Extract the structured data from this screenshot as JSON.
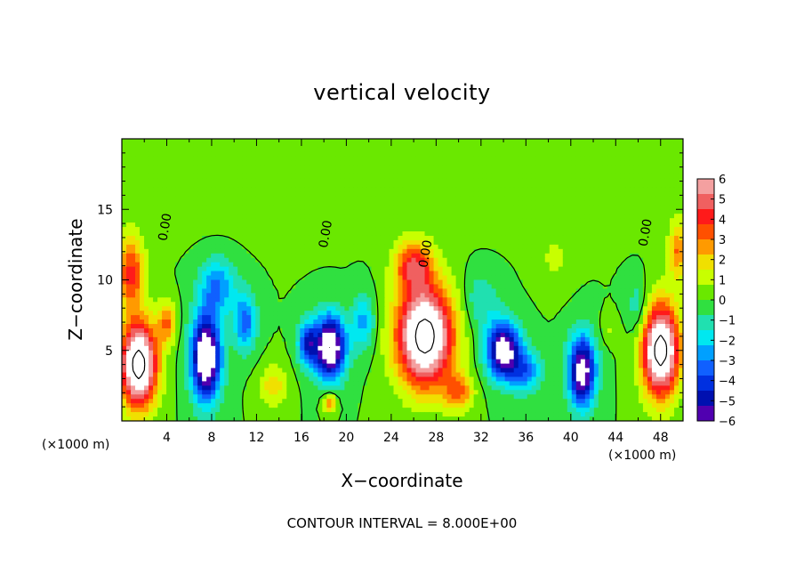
{
  "chart_data": {
    "type": "heatmap",
    "title": "vertical velocity",
    "xlabel": "X−coordinate",
    "ylabel": "Z−coordinate",
    "x_unit_left": "(×1000 m)",
    "x_unit_right": "(×1000 m)",
    "xlim": [
      0,
      50
    ],
    "ylim": [
      0,
      20
    ],
    "x_ticks": [
      4,
      8,
      12,
      16,
      20,
      24,
      28,
      32,
      36,
      40,
      44,
      48
    ],
    "y_ticks": [
      5,
      10,
      15
    ],
    "contour_interval_text": "CONTOUR INTERVAL = 8.000E+00",
    "contour_label": "0.00",
    "colorbar": {
      "levels": [
        6,
        5,
        4,
        3,
        2,
        1,
        0,
        -1,
        -2,
        -3,
        -4,
        -5,
        -6
      ],
      "labels": [
        "6",
        "5",
        "4",
        "3",
        "2",
        "1",
        "0",
        "−1",
        "−2",
        "−3",
        "−4",
        "−5",
        "−6"
      ],
      "colors": [
        "#f4a0a0",
        "#f06060",
        "#ff1a1a",
        "#ff5000",
        "#ff9a00",
        "#f0e000",
        "#c8ff00",
        "#6ae800",
        "#30e040",
        "#20e0b0",
        "#00e8f0",
        "#00a0ff",
        "#1060ff",
        "#0030e0",
        "#0010b0",
        "#5000b0"
      ]
    },
    "features": [
      {
        "x": 1.5,
        "z": 4.0,
        "sx": 1.6,
        "sz": 3.0,
        "w": 9
      },
      {
        "x": 0.8,
        "z": 10.5,
        "sx": 1.2,
        "sz": 2.5,
        "w": 4
      },
      {
        "x": 4.0,
        "z": 7.0,
        "sx": 0.8,
        "sz": 1.5,
        "w": 3
      },
      {
        "x": 7.5,
        "z": 4.5,
        "sx": 1.3,
        "sz": 3.0,
        "w": -8
      },
      {
        "x": 8.5,
        "z": 9.5,
        "sx": 1.6,
        "sz": 2.0,
        "w": -3
      },
      {
        "x": 13.5,
        "z": 2.5,
        "sx": 1.2,
        "sz": 1.5,
        "w": 2
      },
      {
        "x": 18.5,
        "z": 5.2,
        "sx": 1.4,
        "sz": 2.2,
        "w": -8
      },
      {
        "x": 16.5,
        "z": 5.5,
        "sx": 0.8,
        "sz": 1.5,
        "w": -4
      },
      {
        "x": 18.5,
        "z": 1.3,
        "sx": 0.6,
        "sz": 0.7,
        "w": 3
      },
      {
        "x": 27.0,
        "z": 6.0,
        "sx": 2.5,
        "sz": 3.5,
        "w": 9
      },
      {
        "x": 26.0,
        "z": 11.0,
        "sx": 1.7,
        "sz": 1.8,
        "w": 4
      },
      {
        "x": 30.0,
        "z": 2.0,
        "sx": 1.3,
        "sz": 1.3,
        "w": 3
      },
      {
        "x": 34.0,
        "z": 5.0,
        "sx": 1.5,
        "sz": 2.0,
        "w": -7
      },
      {
        "x": 36.0,
        "z": 3.5,
        "sx": 1.4,
        "sz": 1.5,
        "w": -3
      },
      {
        "x": 41.0,
        "z": 3.5,
        "sx": 1.2,
        "sz": 2.5,
        "w": -7
      },
      {
        "x": 38.5,
        "z": 11.5,
        "sx": 1.5,
        "sz": 2.0,
        "w": 0.9
      },
      {
        "x": 43.5,
        "z": 6.5,
        "sx": 0.8,
        "sz": 1.0,
        "w": 0.8
      },
      {
        "x": 48.0,
        "z": 5.0,
        "sx": 1.6,
        "sz": 3.2,
        "w": 9
      },
      {
        "x": 49.5,
        "z": 12.0,
        "sx": 0.8,
        "sz": 2.0,
        "w": 3
      },
      {
        "x": 11.0,
        "z": 7.0,
        "sx": 1.0,
        "sz": 2.0,
        "w": -3.5
      },
      {
        "x": 21.5,
        "z": 7.0,
        "sx": 1.0,
        "sz": 2.0,
        "w": -2.5
      },
      {
        "x": 32.0,
        "z": 8.5,
        "sx": 1.5,
        "sz": 2.0,
        "w": -1.5
      },
      {
        "x": 46.0,
        "z": 8.0,
        "sx": 1.0,
        "sz": 2.0,
        "w": -1.5
      }
    ]
  }
}
